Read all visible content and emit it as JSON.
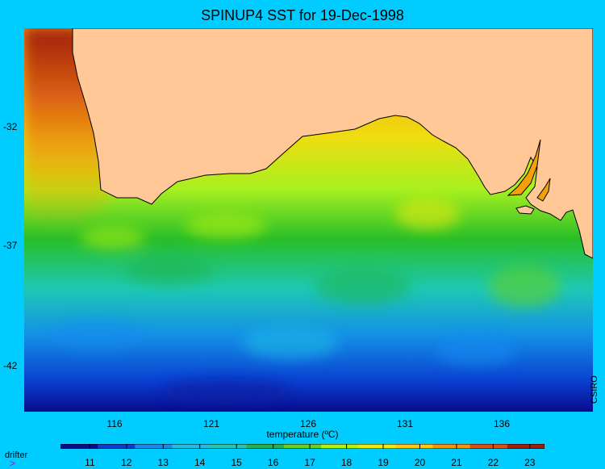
{
  "title": "SPINUP4 SST for 19-Dec-1998",
  "y_labels": [
    "-32",
    "-37",
    "-42"
  ],
  "x_labels": [
    "116",
    "121",
    "126",
    "131",
    "136"
  ],
  "credit": "CSIRO",
  "legend": {
    "symbol": ">",
    "label": "drifter"
  },
  "colorbar": {
    "title": "temperature (ºC)",
    "min": 10.2,
    "max": 23.4,
    "tick_labels": [
      "11",
      "12",
      "13",
      "14",
      "15",
      "16",
      "17",
      "18",
      "19",
      "20",
      "21",
      "22",
      "23"
    ],
    "colors": [
      "#0a0a8c",
      "#0a3cd2",
      "#148cf0",
      "#1ebee6",
      "#1ec8b4",
      "#1eb450",
      "#64d21e",
      "#b4f00a",
      "#ebeb0a",
      "#ffc80a",
      "#f5960a",
      "#dc5014",
      "#a01e0a"
    ]
  },
  "map": {
    "land_color": "#ffc896"
  }
}
